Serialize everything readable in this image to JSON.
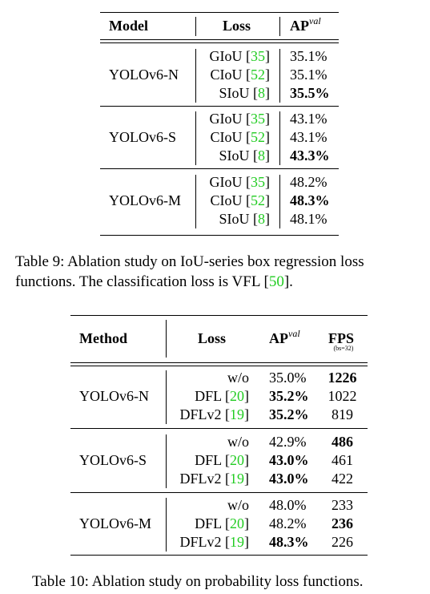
{
  "table9": {
    "headers": {
      "model": "Model",
      "loss": "Loss",
      "ap_base": "AP",
      "ap_sup": "val"
    },
    "groups": [
      {
        "model": "YOLOv6-N",
        "rows": [
          {
            "loss": "GIoU",
            "cite": "35",
            "ap": "35.1%",
            "bold": false
          },
          {
            "loss": "CIoU",
            "cite": "52",
            "ap": "35.1%",
            "bold": false
          },
          {
            "loss": "SIoU",
            "cite": "8",
            "ap": "35.5%",
            "bold": true
          }
        ]
      },
      {
        "model": "YOLOv6-S",
        "rows": [
          {
            "loss": "GIoU",
            "cite": "35",
            "ap": "43.1%",
            "bold": false
          },
          {
            "loss": "CIoU",
            "cite": "52",
            "ap": "43.1%",
            "bold": false
          },
          {
            "loss": "SIoU",
            "cite": "8",
            "ap": "43.3%",
            "bold": true
          }
        ]
      },
      {
        "model": "YOLOv6-M",
        "rows": [
          {
            "loss": "GIoU",
            "cite": "35",
            "ap": "48.2%",
            "bold": false
          },
          {
            "loss": "CIoU",
            "cite": "52",
            "ap": "48.3%",
            "bold": true
          },
          {
            "loss": "SIoU",
            "cite": "8",
            "ap": "48.1%",
            "bold": false
          }
        ]
      }
    ],
    "caption_line1": "Table 9: Ablation study on IoU-series box regression loss",
    "caption_line2_pre": "functions. The classification loss is VFL [",
    "caption_cite": "50",
    "caption_line2_post": "]."
  },
  "table10": {
    "headers": {
      "method": "Method",
      "loss": "Loss",
      "ap_base": "AP",
      "ap_sup": "val",
      "fps": "FPS",
      "fps_note": "(bs=32)"
    },
    "groups": [
      {
        "model": "YOLOv6-N",
        "rows": [
          {
            "loss": "w/o",
            "cite": "",
            "ap": "35.0%",
            "ap_bold": false,
            "fps": "1226",
            "fps_bold": true
          },
          {
            "loss": "DFL",
            "cite": "20",
            "ap": "35.2%",
            "ap_bold": true,
            "fps": "1022",
            "fps_bold": false
          },
          {
            "loss": "DFLv2",
            "cite": "19",
            "ap": "35.2%",
            "ap_bold": true,
            "fps": "819",
            "fps_bold": false
          }
        ]
      },
      {
        "model": "YOLOv6-S",
        "rows": [
          {
            "loss": "w/o",
            "cite": "",
            "ap": "42.9%",
            "ap_bold": false,
            "fps": "486",
            "fps_bold": true
          },
          {
            "loss": "DFL",
            "cite": "20",
            "ap": "43.0%",
            "ap_bold": true,
            "fps": "461",
            "fps_bold": false
          },
          {
            "loss": "DFLv2",
            "cite": "19",
            "ap": "43.0%",
            "ap_bold": true,
            "fps": "422",
            "fps_bold": false
          }
        ]
      },
      {
        "model": "YOLOv6-M",
        "rows": [
          {
            "loss": "w/o",
            "cite": "",
            "ap": "48.0%",
            "ap_bold": false,
            "fps": "233",
            "fps_bold": false
          },
          {
            "loss": "DFL",
            "cite": "20",
            "ap": "48.2%",
            "ap_bold": false,
            "fps": "236",
            "fps_bold": true
          },
          {
            "loss": "DFLv2",
            "cite": "19",
            "ap": "48.3%",
            "ap_bold": true,
            "fps": "226",
            "fps_bold": false
          }
        ]
      }
    ],
    "caption": "Table 10: Ablation study on probability loss functions."
  }
}
